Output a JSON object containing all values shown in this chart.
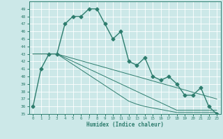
{
  "xlabel": "Humidex (Indice chaleur)",
  "x": [
    0,
    1,
    2,
    3,
    4,
    5,
    6,
    7,
    8,
    9,
    10,
    11,
    12,
    13,
    14,
    15,
    16,
    17,
    18,
    19,
    20,
    21,
    22,
    23
  ],
  "y_main": [
    36,
    41,
    43,
    43,
    47,
    48,
    48,
    49,
    49,
    47,
    45,
    46,
    42,
    41.5,
    42.5,
    40,
    39.5,
    40,
    39,
    37.5,
    37.5,
    38.5,
    36,
    35
  ],
  "y_diag1": [
    43,
    43,
    43,
    43,
    42.7,
    42.4,
    42.1,
    41.8,
    41.5,
    41.2,
    40.9,
    40.6,
    40.3,
    40.0,
    39.7,
    39.4,
    39.1,
    38.8,
    38.5,
    38.2,
    37.9,
    37.6,
    37.3,
    37.0
  ],
  "y_diag2": [
    43,
    43,
    43,
    43,
    42.5,
    42.0,
    41.5,
    41.0,
    40.5,
    40.0,
    39.5,
    39.0,
    38.5,
    38.0,
    37.5,
    37.0,
    36.5,
    36.0,
    35.5,
    35.5,
    35.5,
    35.5,
    35.5,
    35.5
  ],
  "y_diag3": [
    43,
    43,
    43,
    43,
    42.3,
    41.6,
    40.9,
    40.2,
    39.5,
    38.8,
    38.1,
    37.4,
    36.7,
    36.3,
    36.0,
    35.8,
    35.6,
    35.4,
    35.2,
    35.2,
    35.2,
    35.2,
    35.2,
    35.2
  ],
  "ylim": [
    35,
    50
  ],
  "xlim": [
    -0.5,
    23.5
  ],
  "yticks": [
    35,
    36,
    37,
    38,
    39,
    40,
    41,
    42,
    43,
    44,
    45,
    46,
    47,
    48,
    49
  ],
  "xticks": [
    0,
    1,
    2,
    3,
    4,
    5,
    6,
    7,
    8,
    9,
    10,
    11,
    12,
    13,
    14,
    15,
    16,
    17,
    18,
    19,
    20,
    21,
    22,
    23
  ],
  "line_color": "#2e7d6e",
  "bg_color": "#cce8e8",
  "grid_color": "#b8d8d8",
  "marker": "D",
  "marker_size": 2.5,
  "line_width": 1.0
}
